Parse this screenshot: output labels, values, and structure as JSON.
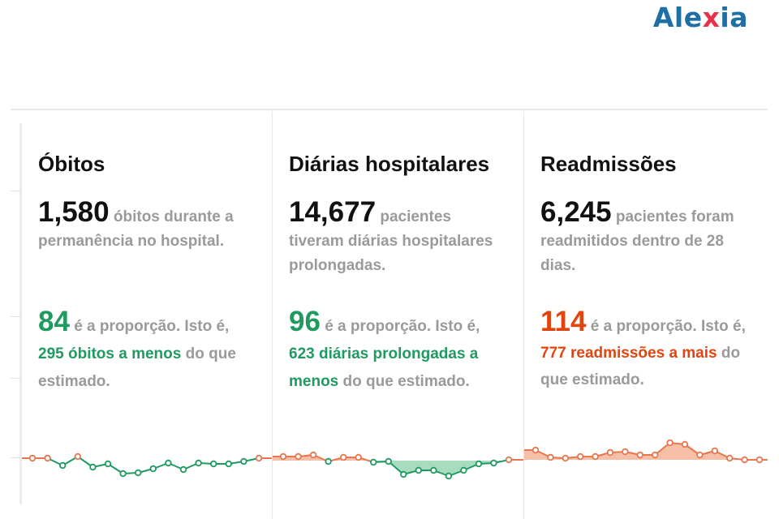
{
  "brand": {
    "logo_text_a": "Ale",
    "logo_text_b": "x",
    "logo_text_c": "ia"
  },
  "colors": {
    "green": "#1f9a60",
    "green_fill": "#a7dcc0",
    "orange": "#e2440f",
    "orange_dot": "#e8774f",
    "orange_fill": "#f5bfa8",
    "grey": "#9a9a9a"
  },
  "cards": [
    {
      "title": "Óbitos",
      "count": "1,580",
      "count_desc": " óbitos durante a permanência no hospital.",
      "ratio": "84",
      "ratio_text": " é a proporção. Isto é, ",
      "highlight": "295 óbitos a menos",
      "tail": " do que estimado.",
      "spark": {
        "baseline": 0,
        "values": [
          0,
          0,
          -9,
          2,
          -11,
          -7,
          -19,
          -18,
          -13,
          -6,
          -14,
          -6,
          -7,
          -7,
          -4,
          0
        ]
      }
    },
    {
      "title": "Diárias hospitalares",
      "count": "14,677",
      "count_desc": " pacientes tiveram diárias hospitalares prolongadas.",
      "ratio": "96",
      "ratio_text": " é a proporção. Isto é, ",
      "highlight": "623 diárias prolongadas a menos",
      "tail": " do que estimado.",
      "spark": {
        "baseline": 0,
        "values": [
          5,
          5,
          7,
          -1,
          4,
          4,
          -2,
          -1,
          -17,
          -12,
          -12,
          -19,
          -12,
          -4,
          -3,
          1
        ]
      }
    },
    {
      "title": "Readmissões",
      "count": "6,245",
      "count_desc": " pacientes foram readmitidos dentro de 28 dias.",
      "ratio": "114",
      "ratio_text": " é a proporção. Isto é, ",
      "highlight": "777 readmissões a mais",
      "tail": " do que estimado.",
      "spark": {
        "baseline": 0,
        "values": [
          12,
          3,
          2,
          4,
          4,
          9,
          10,
          6,
          6,
          21,
          19,
          6,
          11,
          2,
          0,
          0
        ]
      }
    }
  ]
}
